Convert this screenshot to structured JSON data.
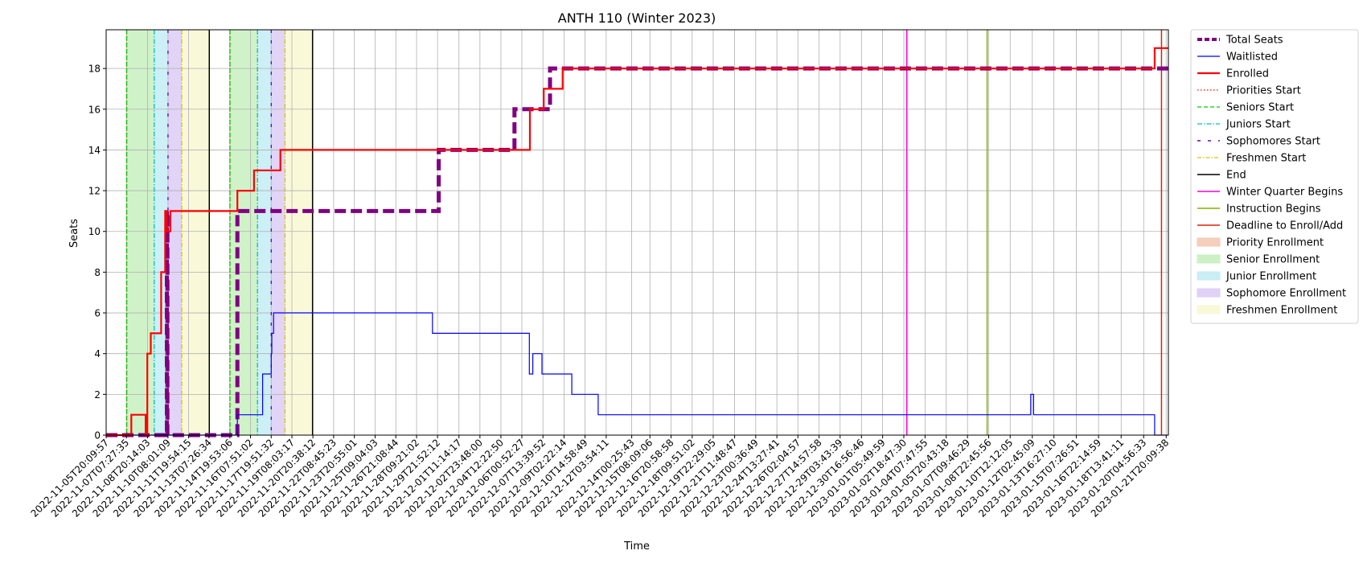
{
  "chart_data": {
    "type": "line",
    "title": "ANTH 110 (Winter 2023)",
    "xlabel": "Time",
    "ylabel": "Seats",
    "xlim": [
      "2022-11-05T20:09:57",
      "2023-01-22T00:00:00"
    ],
    "ylim": [
      0,
      19.9
    ],
    "y_ticks": [
      0,
      2,
      4,
      6,
      8,
      10,
      12,
      14,
      16,
      18
    ],
    "x_tick_labels": [
      "2022-11-05T20:09:57",
      "2022-11-07T07:27:35",
      "2022-11-08T20:14:03",
      "2022-11-10T08:01:09",
      "2022-11-11T19:54:15",
      "2022-11-13T07:26:34",
      "2022-11-14T19:53:06",
      "2022-11-16T07:51:02",
      "2022-11-17T19:51:32",
      "2022-11-19T08:03:17",
      "2022-11-20T20:38:12",
      "2022-11-22T08:45:23",
      "2022-11-23T20:55:01",
      "2022-11-25T09:04:03",
      "2022-11-26T21:08:44",
      "2022-11-28T09:21:02",
      "2022-11-29T21:52:12",
      "2022-12-01T11:14:17",
      "2022-12-02T23:48:00",
      "2022-12-04T12:22:50",
      "2022-12-06T00:52:27",
      "2022-12-07T13:39:52",
      "2022-12-09T02:22:14",
      "2022-12-10T14:58:49",
      "2022-12-12T03:54:11",
      "2022-12-14T00:25:43",
      "2022-12-15T08:09:06",
      "2022-12-16T20:58:58",
      "2022-12-18T09:51:02",
      "2022-12-19T22:29:05",
      "2022-12-21T11:48:47",
      "2022-12-23T00:36:49",
      "2022-12-24T13:27:41",
      "2022-12-26T02:04:57",
      "2022-12-27T14:57:58",
      "2022-12-29T03:43:39",
      "2022-12-30T16:56:46",
      "2023-01-01T05:49:59",
      "2023-01-02T18:47:30",
      "2023-01-04T07:47:55",
      "2023-01-05T20:43:18",
      "2023-01-07T09:46:29",
      "2023-01-08T22:45:56",
      "2023-01-10T12:12:05",
      "2023-01-12T02:45:09",
      "2023-01-13T16:27:10",
      "2023-01-15T07:26:51",
      "2023-01-16T22:14:59",
      "2023-01-18T13:41:11",
      "2023-01-20T04:56:33",
      "2023-01-21T20:09:38"
    ],
    "grid": true,
    "legend_position": "outside-right",
    "series": [
      {
        "name": "Total Seats",
        "color": "#800080",
        "style": "dashed-thick",
        "points": [
          [
            "2022-11-05T20:09:57",
            0
          ],
          [
            "2022-11-10T06:00:00",
            0
          ],
          [
            "2022-11-10T06:00:00",
            11
          ],
          [
            "2022-11-10T07:00:00",
            11
          ],
          [
            "2022-11-10T07:00:00",
            0
          ],
          [
            "2022-11-15T09:00:00",
            0
          ],
          [
            "2022-11-15T09:00:00",
            11
          ],
          [
            "2022-11-30T00:00:00",
            11
          ],
          [
            "2022-11-30T00:00:00",
            14
          ],
          [
            "2022-12-05T12:00:00",
            14
          ],
          [
            "2022-12-05T12:00:00",
            16
          ],
          [
            "2022-12-08T02:00:00",
            16
          ],
          [
            "2022-12-08T02:00:00",
            18
          ],
          [
            "2023-01-22T00:00:00",
            18
          ]
        ]
      },
      {
        "name": "Waitlisted",
        "color": "#0000ff",
        "style": "solid-thin",
        "points": [
          [
            "2022-11-05T20:09:57",
            0
          ],
          [
            "2022-11-15T09:00:00",
            0
          ],
          [
            "2022-11-15T09:00:00",
            1
          ],
          [
            "2022-11-17T05:00:00",
            1
          ],
          [
            "2022-11-17T05:00:00",
            3
          ],
          [
            "2022-11-17T20:00:00",
            3
          ],
          [
            "2022-11-17T20:00:00",
            4
          ],
          [
            "2022-11-17T21:00:00",
            4
          ],
          [
            "2022-11-17T21:00:00",
            5
          ],
          [
            "2022-11-18T00:00:00",
            5
          ],
          [
            "2022-11-18T00:00:00",
            6
          ],
          [
            "2022-11-29T13:00:00",
            6
          ],
          [
            "2022-11-29T13:00:00",
            5
          ],
          [
            "2022-12-06T14:00:00",
            5
          ],
          [
            "2022-12-06T14:00:00",
            3
          ],
          [
            "2022-12-06T20:00:00",
            3
          ],
          [
            "2022-12-06T20:00:00",
            4
          ],
          [
            "2022-12-07T12:00:00",
            4
          ],
          [
            "2022-12-07T12:00:00",
            3
          ],
          [
            "2022-12-09T16:00:00",
            3
          ],
          [
            "2022-12-09T16:00:00",
            2
          ],
          [
            "2022-12-11T14:00:00",
            2
          ],
          [
            "2022-12-11T14:00:00",
            1
          ],
          [
            "2023-01-12T00:00:00",
            1
          ],
          [
            "2023-01-12T00:00:00",
            2
          ],
          [
            "2023-01-12T05:00:00",
            2
          ],
          [
            "2023-01-12T05:00:00",
            1
          ],
          [
            "2023-01-21T00:00:00",
            1
          ],
          [
            "2023-01-21T00:00:00",
            0
          ],
          [
            "2023-01-22T00:00:00",
            0
          ]
        ]
      },
      {
        "name": "Enrolled",
        "color": "#ff0000",
        "style": "solid-thick",
        "points": [
          [
            "2022-11-05T20:09:57",
            0
          ],
          [
            "2022-11-07T16:00:00",
            0
          ],
          [
            "2022-11-07T16:00:00",
            1
          ],
          [
            "2022-11-08T17:00:00",
            1
          ],
          [
            "2022-11-08T17:00:00",
            0
          ],
          [
            "2022-11-08T20:00:00",
            0
          ],
          [
            "2022-11-08T20:00:00",
            4
          ],
          [
            "2022-11-09T02:00:00",
            4
          ],
          [
            "2022-11-09T02:00:00",
            5
          ],
          [
            "2022-11-09T20:00:00",
            5
          ],
          [
            "2022-11-09T20:00:00",
            8
          ],
          [
            "2022-11-10T03:00:00",
            8
          ],
          [
            "2022-11-10T03:00:00",
            11
          ],
          [
            "2022-11-10T06:00:00",
            11
          ],
          [
            "2022-11-10T06:00:00",
            10
          ],
          [
            "2022-11-10T12:00:00",
            10
          ],
          [
            "2022-11-10T12:00:00",
            11
          ],
          [
            "2022-11-15T09:00:00",
            11
          ],
          [
            "2022-11-15T09:00:00",
            12
          ],
          [
            "2022-11-16T14:00:00",
            12
          ],
          [
            "2022-11-16T14:00:00",
            13
          ],
          [
            "2022-11-18T12:00:00",
            13
          ],
          [
            "2022-11-18T12:00:00",
            14
          ],
          [
            "2022-12-06T15:00:00",
            14
          ],
          [
            "2022-12-06T15:00:00",
            16
          ],
          [
            "2022-12-07T15:00:00",
            16
          ],
          [
            "2022-12-07T15:00:00",
            17
          ],
          [
            "2022-12-09T00:00:00",
            17
          ],
          [
            "2022-12-09T00:00:00",
            18
          ],
          [
            "2023-01-21T00:00:00",
            18
          ],
          [
            "2023-01-21T00:00:00",
            19
          ],
          [
            "2023-01-22T00:00:00",
            19
          ]
        ]
      }
    ],
    "vertical_lines": [
      {
        "name": "Priorities Start",
        "color": "#ff0000",
        "style": "dotted",
        "x": [
          "2022-11-07T08:00:00",
          "2022-11-14T20:00:00"
        ]
      },
      {
        "name": "Seniors Start",
        "color": "#00cc00",
        "style": "dashed",
        "x": [
          "2022-11-07T08:00:00",
          "2022-11-14T20:00:00"
        ]
      },
      {
        "name": "Juniors Start",
        "color": "#00bfbf",
        "style": "dashdot",
        "x": [
          "2022-11-09T08:00:00",
          "2022-11-16T20:00:00"
        ]
      },
      {
        "name": "Sophomores Start",
        "color": "#6000cc",
        "style": "loosely-dashed",
        "x": [
          "2022-11-10T08:00:00",
          "2022-11-17T20:00:00"
        ]
      },
      {
        "name": "Freshmen Start",
        "color": "#e0c000",
        "style": "dashdot",
        "x": [
          "2022-11-11T08:00:00",
          "2022-11-18T20:00:00"
        ]
      },
      {
        "name": "End",
        "color": "#000000",
        "style": "solid",
        "x": [
          "2022-11-13T08:00:00",
          "2022-11-20T20:00:00"
        ]
      },
      {
        "name": "Winter Quarter Begins",
        "color": "#ff00cc",
        "style": "solid",
        "x": [
          "2023-01-03T00:00:00"
        ]
      },
      {
        "name": "Instruction Begins",
        "color": "#80b000",
        "style": "solid",
        "x": [
          "2023-01-08T20:00:00"
        ]
      },
      {
        "name": "Deadline to Enroll/Add",
        "color": "#dd2200",
        "style": "solid",
        "x": [
          "2023-01-21T12:00:00"
        ]
      }
    ],
    "shaded_regions": [
      {
        "name": "Priority Enrollment",
        "color": "#f4c9b6",
        "spans": [
          [
            "2022-11-07T08:00:00",
            "2022-11-07T08:00:00"
          ],
          [
            "2022-11-14T20:00:00",
            "2022-11-14T20:00:00"
          ]
        ]
      },
      {
        "name": "Senior Enrollment",
        "color": "#c8f0c0",
        "spans": [
          [
            "2022-11-07T08:00:00",
            "2022-11-09T08:00:00"
          ],
          [
            "2022-11-14T20:00:00",
            "2022-11-16T20:00:00"
          ]
        ]
      },
      {
        "name": "Junior Enrollment",
        "color": "#c4ecf4",
        "spans": [
          [
            "2022-11-09T08:00:00",
            "2022-11-10T08:00:00"
          ],
          [
            "2022-11-16T20:00:00",
            "2022-11-17T20:00:00"
          ]
        ]
      },
      {
        "name": "Sophomore Enrollment",
        "color": "#dccdf4",
        "spans": [
          [
            "2022-11-10T08:00:00",
            "2022-11-11T08:00:00"
          ],
          [
            "2022-11-17T20:00:00",
            "2022-11-18T20:00:00"
          ]
        ]
      },
      {
        "name": "Freshmen Enrollment",
        "color": "#f8f8d4",
        "spans": [
          [
            "2022-11-11T08:00:00",
            "2022-11-13T08:00:00"
          ],
          [
            "2022-11-18T20:00:00",
            "2022-11-20T20:00:00"
          ]
        ]
      }
    ],
    "legend": [
      {
        "label": "Total Seats",
        "kind": "line",
        "color": "#800080",
        "dash": "6,3",
        "width": 4
      },
      {
        "label": "Waitlisted",
        "kind": "line",
        "color": "#0000ff",
        "dash": "",
        "width": 1.2
      },
      {
        "label": "Enrolled",
        "kind": "line",
        "color": "#ff0000",
        "dash": "",
        "width": 2.2
      },
      {
        "label": "Priorities Start",
        "kind": "line",
        "color": "#ff0000",
        "dash": "1.5,2.5",
        "width": 1.3
      },
      {
        "label": "Seniors Start",
        "kind": "line",
        "color": "#00cc00",
        "dash": "5,3",
        "width": 1.3
      },
      {
        "label": "Juniors Start",
        "kind": "line",
        "color": "#00bfbf",
        "dash": "6,2,1.5,2",
        "width": 1.3
      },
      {
        "label": "Sophomores Start",
        "kind": "line",
        "color": "#6000cc",
        "dash": "4,9",
        "width": 1.5
      },
      {
        "label": "Freshmen Start",
        "kind": "line",
        "color": "#e0c000",
        "dash": "5,2,1.5,2",
        "width": 1.3
      },
      {
        "label": "End",
        "kind": "line",
        "color": "#000000",
        "dash": "",
        "width": 1.5
      },
      {
        "label": "Winter Quarter Begins",
        "kind": "line",
        "color": "#ff00cc",
        "dash": "",
        "width": 1.5
      },
      {
        "label": "Instruction Begins",
        "kind": "line",
        "color": "#80b000",
        "dash": "",
        "width": 1.5
      },
      {
        "label": "Deadline to Enroll/Add",
        "kind": "line",
        "color": "#dd2200",
        "dash": "",
        "width": 1.5
      },
      {
        "label": "Priority Enrollment",
        "kind": "patch",
        "color": "#f4c9b6"
      },
      {
        "label": "Senior Enrollment",
        "kind": "patch",
        "color": "#c8f0c0"
      },
      {
        "label": "Junior Enrollment",
        "kind": "patch",
        "color": "#c4ecf4"
      },
      {
        "label": "Sophomore Enrollment",
        "kind": "patch",
        "color": "#dccdf4"
      },
      {
        "label": "Freshmen Enrollment",
        "kind": "patch",
        "color": "#f8f8d4"
      }
    ]
  }
}
